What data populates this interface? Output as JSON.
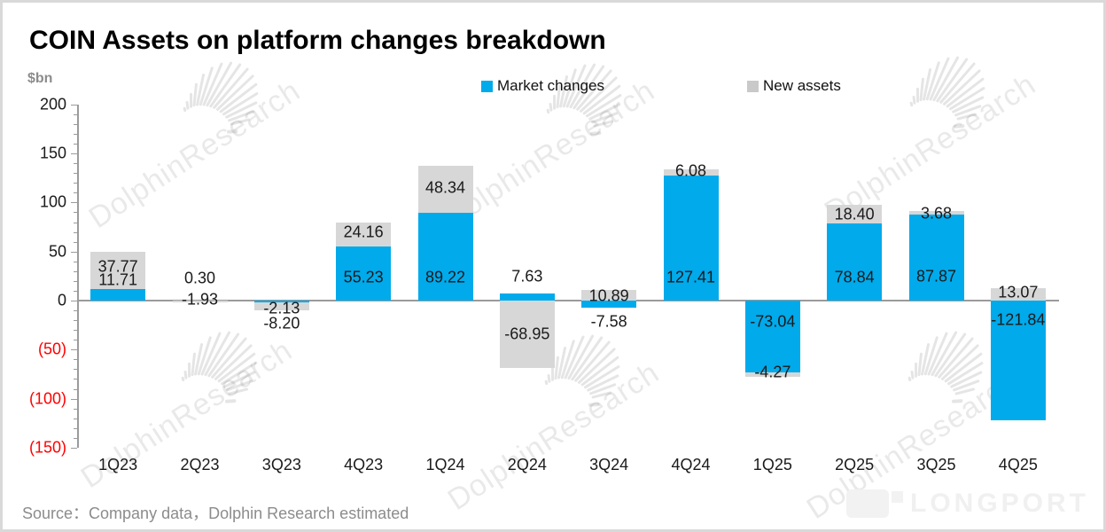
{
  "title": "COIN Assets on platform changes breakdown",
  "unit_label": "$bn",
  "legend": [
    {
      "label": "Market changes",
      "color": "#00AAEB"
    },
    {
      "label": "New assets",
      "color": "#C9C9C9"
    }
  ],
  "source": "Source：Company data，Dolphin Research estimated",
  "watermark": {
    "text": "DolphinResearch",
    "brand": "LONGPORT"
  },
  "colors": {
    "market_changes": "#00AAEB",
    "new_assets": "#D7D7D7",
    "negative_axis_label": "#FF0000",
    "axis": "#9B9B9B"
  },
  "chart_data": {
    "type": "bar",
    "stacked": true,
    "title": "COIN Assets on platform changes breakdown",
    "ylabel": "$bn",
    "ylim": [
      -150,
      200
    ],
    "ytick_step": 50,
    "ytick_minor_step": 10,
    "ytick_labels": [
      "200",
      "150",
      "100",
      "50",
      "0",
      "(50)",
      "(100)",
      "(150)"
    ],
    "negative_tick_style": "red-parentheses",
    "grid": false,
    "legend_position": "top",
    "categories": [
      "1Q23",
      "2Q23",
      "3Q23",
      "4Q23",
      "1Q24",
      "2Q24",
      "3Q24",
      "4Q24",
      "1Q25",
      "2Q25",
      "3Q25",
      "4Q25"
    ],
    "series": [
      {
        "name": "Market changes",
        "color": "#00AAEB",
        "values": [
          11.71,
          0.3,
          -2.13,
          55.23,
          89.22,
          7.63,
          -7.58,
          127.41,
          -73.04,
          78.84,
          87.87,
          -121.84
        ]
      },
      {
        "name": "New assets",
        "color": "#D7D7D7",
        "values": [
          37.77,
          -1.93,
          -8.2,
          24.16,
          48.34,
          -68.95,
          10.89,
          6.08,
          -4.27,
          18.4,
          3.68,
          13.07
        ]
      }
    ]
  }
}
